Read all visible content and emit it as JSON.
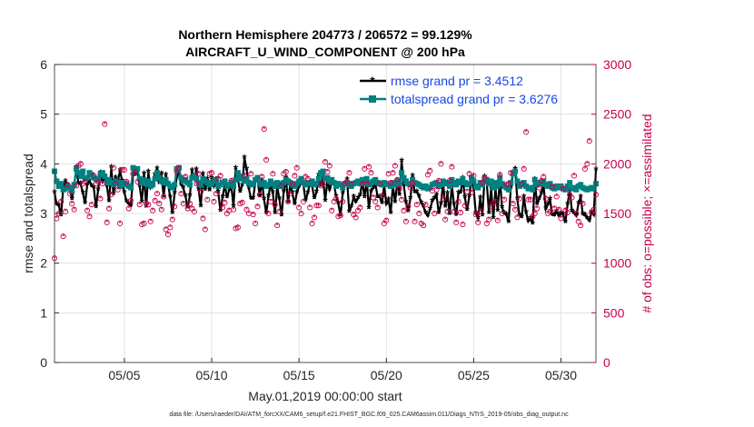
{
  "chart_data": {
    "type": "line",
    "title": "Northern Hemisphere 204773 / 206572 = 99.129%",
    "subtitle": "AIRCRAFT_U_WIND_COMPONENT @ 200 hPa",
    "xlabel": "May.01,2019 00:00:00 start",
    "ylabel": "rmse and totalspread",
    "ylabel_right": "# of obs: o=possible; ×=assimilated",
    "footnote": "data file: /Users/raeder/DAI/ATM_forcXX/CAM6_setup/f.e21.FHIST_BGC.f09_025.CAM6assim.011/Diags_NTrS_2019-05/obs_diag_output.nc",
    "x_range": [
      1,
      32
    ],
    "x_ticks": [
      5,
      10,
      15,
      20,
      25,
      30
    ],
    "x_tick_labels": [
      "05/05",
      "05/10",
      "05/15",
      "05/20",
      "05/25",
      "05/30"
    ],
    "ylim": [
      0,
      6
    ],
    "y_ticks": [
      "0",
      "1",
      "2",
      "3",
      "4",
      "5",
      "6"
    ],
    "ylim_right": [
      0,
      3000
    ],
    "y_ticks_right": [
      "0",
      "500",
      "1000",
      "1500",
      "2000",
      "2500",
      "3000"
    ],
    "grid": true,
    "legend_position": "top-right",
    "colors": {
      "rmse": "#000000",
      "spread": "#008080",
      "obs": "#c8004f",
      "legend_text": "#1747e6"
    },
    "series": [
      {
        "name": "rmse grand pr = 3.4512",
        "values": [
          3.42,
          3.18,
          3.16,
          2.95,
          3.52,
          3.64,
          3.57,
          3.52,
          3.28,
          3.57,
          3.92,
          3.6,
          3.59,
          3.41,
          3.2,
          3.58,
          3.66,
          3.55,
          3.52,
          3.12,
          3.48,
          3.81,
          3.64,
          3.74,
          3.55,
          3.24,
          3.92,
          3.38,
          3.71,
          3.64,
          3.86,
          3.65,
          3.42,
          3.24,
          3.19,
          3.16,
          3.8,
          3.78,
          3.88,
          3.55,
          3.23,
          3.8,
          3.13,
          3.83,
          3.52,
          3.6,
          3.78,
          3.9,
          3.6,
          3.8,
          3.33,
          3.77,
          3.6,
          3.33,
          3.0,
          3.4,
          3.73,
          3.85,
          3.58,
          3.51,
          3.35,
          3.11,
          3.36,
          3.86,
          3.69,
          3.88,
          3.48,
          3.14,
          3.79,
          3.47,
          3.69,
          3.46,
          3.7,
          3.55,
          3.68,
          3.43,
          3.05,
          3.33,
          3.58,
          3.32,
          3.47,
          3.54,
          3.14,
          3.91,
          3.69,
          3.43,
          3.57,
          4.12,
          3.89,
          3.51,
          3.3,
          3.3,
          3.64,
          3.7,
          3.34,
          3.66,
          3.28,
          3.0,
          3.35,
          3.6,
          3.42,
          3.0,
          3.55,
          3.29,
          2.95,
          3.44,
          3.71,
          3.22,
          3.61,
          3.41,
          3.18,
          3.42,
          3.54,
          3.63,
          3.58,
          3.26,
          3.41,
          3.62,
          3.55,
          3.3,
          3.43,
          3.77,
          3.55,
          3.71,
          3.25,
          3.68,
          3.48,
          3.62,
          3.6,
          3.34,
          3.2,
          2.95,
          3.4,
          3.6,
          3.68,
          3.03,
          3.14,
          3.33,
          3.23,
          3.3,
          3.37,
          3.65,
          3.32,
          3.67,
          3.1,
          3.44,
          3.51,
          3.6,
          3.33,
          3.33,
          3.2,
          3.57,
          3.19,
          3.27,
          3.0,
          3.58,
          3.22,
          3.63,
          3.37,
          4.05,
          3.57,
          3.22,
          3.04,
          3.3,
          3.75,
          3.43,
          3.43,
          3.34,
          3.21,
          3.14,
          3.01,
          2.95,
          3.08,
          3.25,
          3.3,
          3.37,
          3.0,
          3.19,
          3.63,
          3.13,
          3.4,
          2.98,
          3.57,
          3.18,
          2.96,
          3.41,
          3.42,
          3.7,
          3.32,
          3.06,
          3.35,
          3.73,
          3.51,
          3.0,
          2.9,
          3.31,
          2.95,
          3.73,
          3.62,
          3.0,
          3.52,
          2.9,
          3.5,
          3.05,
          3.72,
          3.12,
          3.0,
          2.97,
          2.82,
          3.51,
          3.8,
          3.89,
          3.28,
          2.96,
          2.93,
          3.33,
          3.02,
          2.84,
          2.9,
          2.79,
          3.68,
          3.18,
          3.29,
          3.4,
          3.58,
          3.09,
          3.18,
          3.28,
          2.97,
          2.96,
          3.04,
          2.95,
          3.0,
          2.98,
          2.82,
          3.18,
          3.48,
          3.05,
          3.0,
          2.95,
          3.2,
          3.33,
          2.98,
          2.96,
          2.9,
          2.85,
          3.03,
          2.97,
          3.88,
          3.16,
          3.02,
          2.95,
          2.82
        ],
        "note_values_sampled_every_0.25_days_from_day": 1.0
      },
      {
        "name": "totalspread grand pr = 3.6276",
        "values": [
          3.85,
          3.65,
          3.55,
          3.6,
          3.48,
          3.5,
          3.55,
          3.52,
          3.45,
          3.58,
          3.9,
          3.82,
          3.75,
          3.85,
          3.7,
          3.72,
          3.82,
          3.78,
          3.72,
          3.7,
          3.68,
          3.78,
          3.82,
          3.75,
          3.62,
          3.68,
          3.62,
          3.58,
          3.65,
          3.62,
          3.55,
          3.62,
          3.58,
          3.6,
          3.55,
          3.52,
          3.92,
          3.88,
          3.9,
          3.7,
          3.62,
          3.68,
          3.6,
          3.65,
          3.55,
          3.58,
          3.7,
          3.82,
          3.72,
          3.65,
          3.62,
          3.68,
          3.6,
          3.55,
          3.52,
          3.58,
          3.9,
          3.92,
          3.72,
          3.65,
          3.68,
          3.62,
          3.58,
          3.72,
          3.75,
          3.7,
          3.62,
          3.58,
          3.7,
          3.65,
          3.62,
          3.58,
          3.6,
          3.65,
          3.68,
          3.55,
          3.58,
          3.62,
          3.65,
          3.55,
          3.58,
          3.62,
          3.55,
          3.68,
          3.82,
          3.7,
          3.75,
          3.65,
          3.7,
          3.62,
          3.58,
          3.6,
          3.68,
          3.72,
          3.6,
          3.58,
          3.62,
          3.55,
          3.58,
          3.65,
          3.6,
          3.55,
          3.62,
          3.6,
          3.55,
          3.62,
          3.68,
          3.65,
          3.62,
          3.58,
          3.55,
          3.6,
          3.65,
          3.7,
          3.62,
          3.58,
          3.62,
          3.6,
          3.65,
          3.58,
          3.6,
          3.7,
          3.82,
          3.85,
          3.7,
          3.72,
          3.65,
          3.68,
          3.62,
          3.55,
          3.6,
          3.58,
          3.52,
          3.6,
          3.62,
          3.58,
          3.55,
          3.6,
          3.62,
          3.65,
          3.6,
          3.68,
          3.62,
          3.7,
          3.58,
          3.62,
          3.65,
          3.68,
          3.62,
          3.6,
          3.58,
          3.62,
          3.6,
          3.58,
          3.55,
          3.62,
          3.58,
          3.65,
          3.6,
          3.82,
          3.72,
          3.65,
          3.6,
          3.58,
          3.68,
          3.62,
          3.6,
          3.58,
          3.55,
          3.52,
          3.55,
          3.5,
          3.52,
          3.58,
          3.6,
          3.62,
          3.55,
          3.58,
          3.65,
          3.6,
          3.62,
          3.55,
          3.68,
          3.62,
          3.58,
          3.65,
          3.62,
          3.7,
          3.62,
          3.58,
          3.6,
          3.72,
          3.65,
          3.55,
          3.52,
          3.62,
          3.58,
          3.7,
          3.68,
          3.6,
          3.65,
          3.52,
          3.62,
          3.55,
          3.72,
          3.6,
          3.55,
          3.52,
          3.48,
          3.62,
          3.8,
          3.85,
          3.65,
          3.55,
          3.58,
          3.62,
          3.55,
          3.5,
          3.52,
          3.48,
          3.68,
          3.58,
          3.62,
          3.6,
          3.65,
          3.58,
          3.55,
          3.6,
          3.52,
          3.5,
          3.55,
          3.52,
          3.55,
          3.5,
          3.48,
          3.55,
          3.62,
          3.5,
          3.52,
          3.48,
          3.55,
          3.58,
          3.52,
          3.5,
          3.48,
          3.5,
          3.52,
          3.5,
          3.6,
          3.5,
          3.48,
          3.47,
          3.45
        ],
        "note_values_sampled_every_0.25_days_from_day": 1.0
      },
      {
        "name": "obs possible",
        "axis": "right",
        "values": [
          1050,
          1450,
          1500,
          1620,
          1270,
          1520,
          1790,
          1700,
          1600,
          1540,
          1780,
          1980,
          2000,
          1800,
          1820,
          1530,
          1470,
          1590,
          1880,
          1800,
          1820,
          1650,
          1800,
          2400,
          1410,
          1550,
          1690,
          1960,
          1800,
          1740,
          1400,
          1940,
          1940,
          1820,
          1550,
          1630,
          1900,
          1920,
          1820,
          1590,
          1390,
          1400,
          1600,
          1590,
          1420,
          1530,
          1630,
          1700,
          1600,
          1540,
          1670,
          1340,
          1290,
          1360,
          1440,
          1570,
          1920,
          1960,
          1700,
          1600,
          1870,
          1550,
          1600,
          1550,
          1520,
          1800,
          1900,
          1720,
          1450,
          1340,
          1640,
          1900,
          1910,
          1620,
          1700,
          1850,
          1880,
          1560,
          1610,
          1500,
          1530,
          1830,
          1540,
          1350,
          1360,
          1600,
          1610,
          1880,
          1540,
          1500,
          1900,
          1490,
          1400,
          1570,
          1690,
          1870,
          2350,
          2040,
          1500,
          1620,
          1900,
          1590,
          1380,
          1520,
          1780,
          1900,
          1920,
          1620,
          1700,
          1800,
          1880,
          1960,
          1560,
          1500,
          1620,
          1870,
          1850,
          1560,
          1400,
          1460,
          1580,
          1580,
          1780,
          1800,
          2020,
          1920,
          1980,
          1530,
          1620,
          1650,
          1470,
          1480,
          1620,
          1800,
          1820,
          1910,
          1800,
          1490,
          1460,
          1530,
          1560,
          1800,
          1950,
          1800,
          1970,
          1910,
          1660,
          1620,
          1560,
          1800,
          1680,
          1400,
          1430,
          1900,
          1810,
          1910,
          1980,
          1840,
          1750,
          1640,
          1530,
          1420,
          1570,
          1760,
          1810,
          1420,
          1590,
          1500,
          1400,
          1380,
          1590,
          1890,
          1930,
          1730,
          1500,
          1740,
          1830,
          2000,
          1650,
          1440,
          1520,
          1830,
          1970,
          1520,
          1410,
          1620,
          1510,
          1390,
          1580,
          1720,
          1900,
          1710,
          1880,
          1490,
          1410,
          1520,
          1810,
          1860,
          1400,
          1440,
          1570,
          1610,
          1620,
          1430,
          1890,
          1500,
          1640,
          1790,
          1800,
          1910,
          1600,
          1540,
          1460,
          1650,
          1800,
          1950,
          2320,
          1640,
          1640,
          1470,
          1500,
          1550,
          1760,
          1830,
          1870,
          1650,
          1500,
          1520,
          1770,
          1550,
          1670,
          1540,
          1450,
          1750,
          1530,
          1510,
          1690,
          1660,
          1880,
          1500,
          1420,
          1380,
          1600,
          1950,
          2000,
          2230,
          1510,
          1540,
          1690,
          0
        ],
        "note_values_sampled_every_0.125_days_from_day": 1.0
      }
    ]
  }
}
